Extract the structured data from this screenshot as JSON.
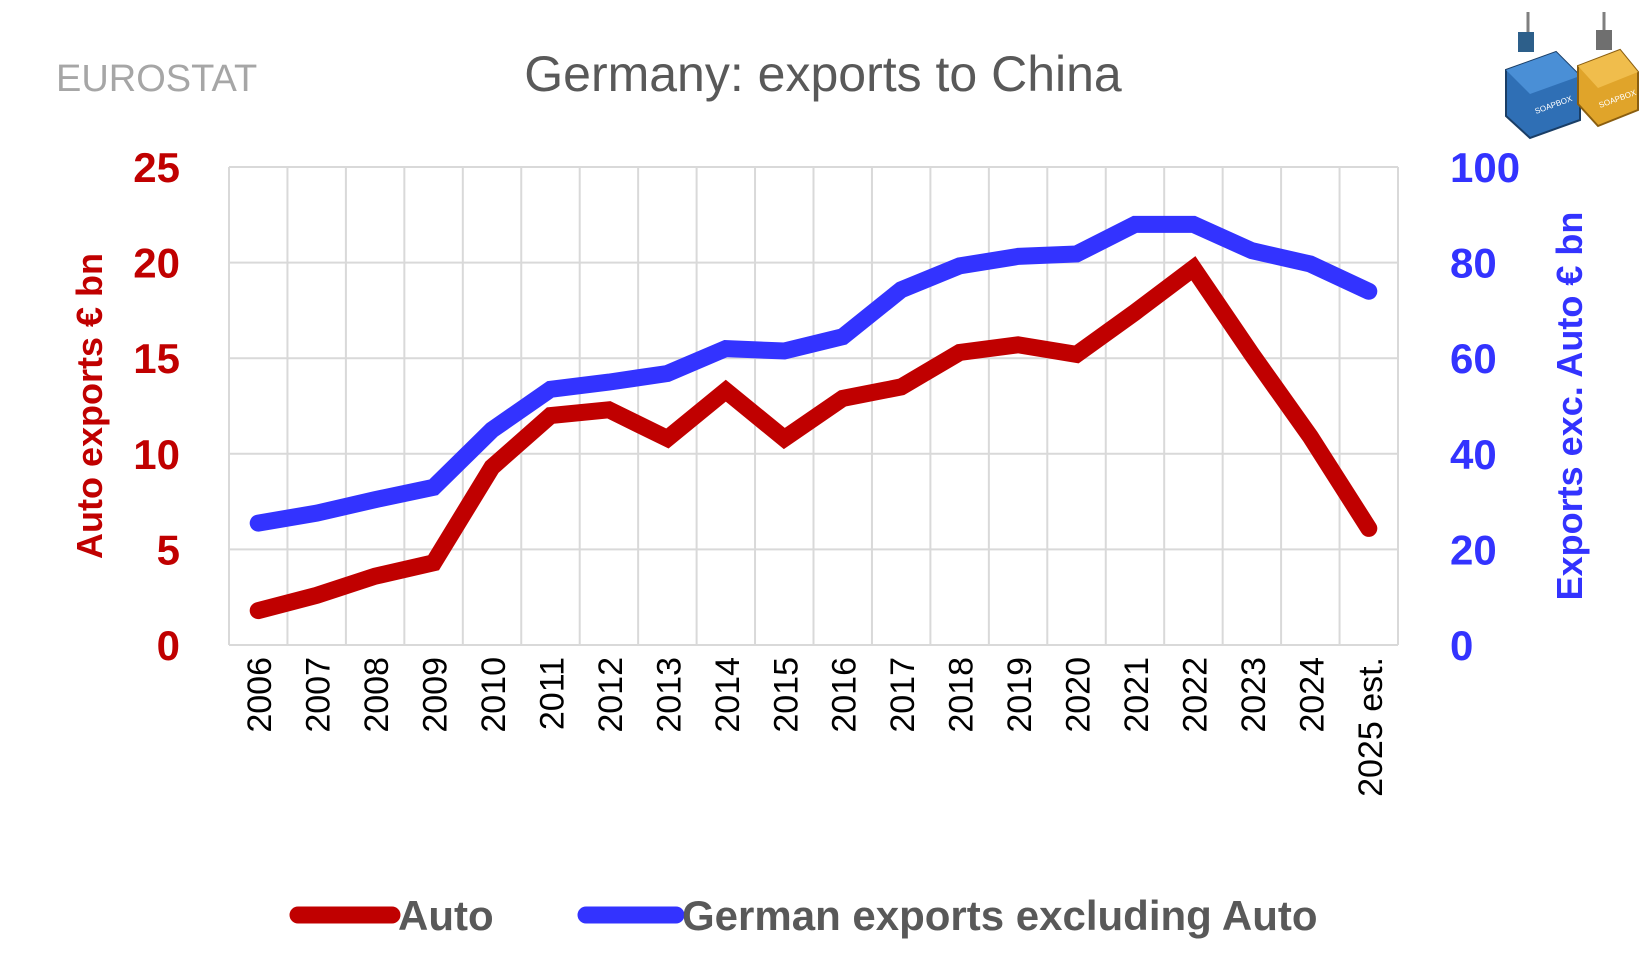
{
  "source_label": "EUROSTAT",
  "colors": {
    "auto": "#c00000",
    "other": "#3333ff",
    "grid": "#d9d9d9",
    "text": "#595959",
    "source": "#a6a6a6"
  },
  "logo_text": "SOAPBOX",
  "chart_data": {
    "type": "line",
    "title": "Germany: exports to China",
    "categories": [
      "2006",
      "2007",
      "2008",
      "2009",
      "2010",
      "2011",
      "2012",
      "2013",
      "2014",
      "2015",
      "2016",
      "2017",
      "2018",
      "2019",
      "2020",
      "2021",
      "2022",
      "2023",
      "2024",
      "2025 est."
    ],
    "series": [
      {
        "name": "Auto",
        "axis": "left",
        "color": "#c00000",
        "values": [
          1.8,
          2.6,
          3.6,
          4.3,
          9.3,
          12.0,
          12.3,
          10.8,
          13.3,
          10.8,
          12.9,
          13.5,
          15.3,
          15.7,
          15.2,
          17.4,
          19.7,
          15.2,
          10.9,
          6.1
        ]
      },
      {
        "name": "German exports excluding Auto",
        "axis": "right",
        "color": "#3333ff",
        "values": [
          25.5,
          27.6,
          30.4,
          33.0,
          45.0,
          53.5,
          55.0,
          56.8,
          62.0,
          61.5,
          64.5,
          74.3,
          79.3,
          81.3,
          81.8,
          88.0,
          88.0,
          82.5,
          79.7,
          74.0
        ]
      }
    ],
    "y_left": {
      "label": "Auto exports € bn",
      "min": 0,
      "max": 25,
      "step": 5,
      "ticks": [
        "0",
        "5",
        "10",
        "15",
        "20",
        "25"
      ]
    },
    "y_right": {
      "label": "Exports exc. Auto € bn",
      "min": 0,
      "max": 100,
      "step": 20,
      "ticks": [
        "0",
        "20",
        "40",
        "60",
        "80",
        "100"
      ]
    },
    "grid": true,
    "legend_position": "bottom"
  }
}
